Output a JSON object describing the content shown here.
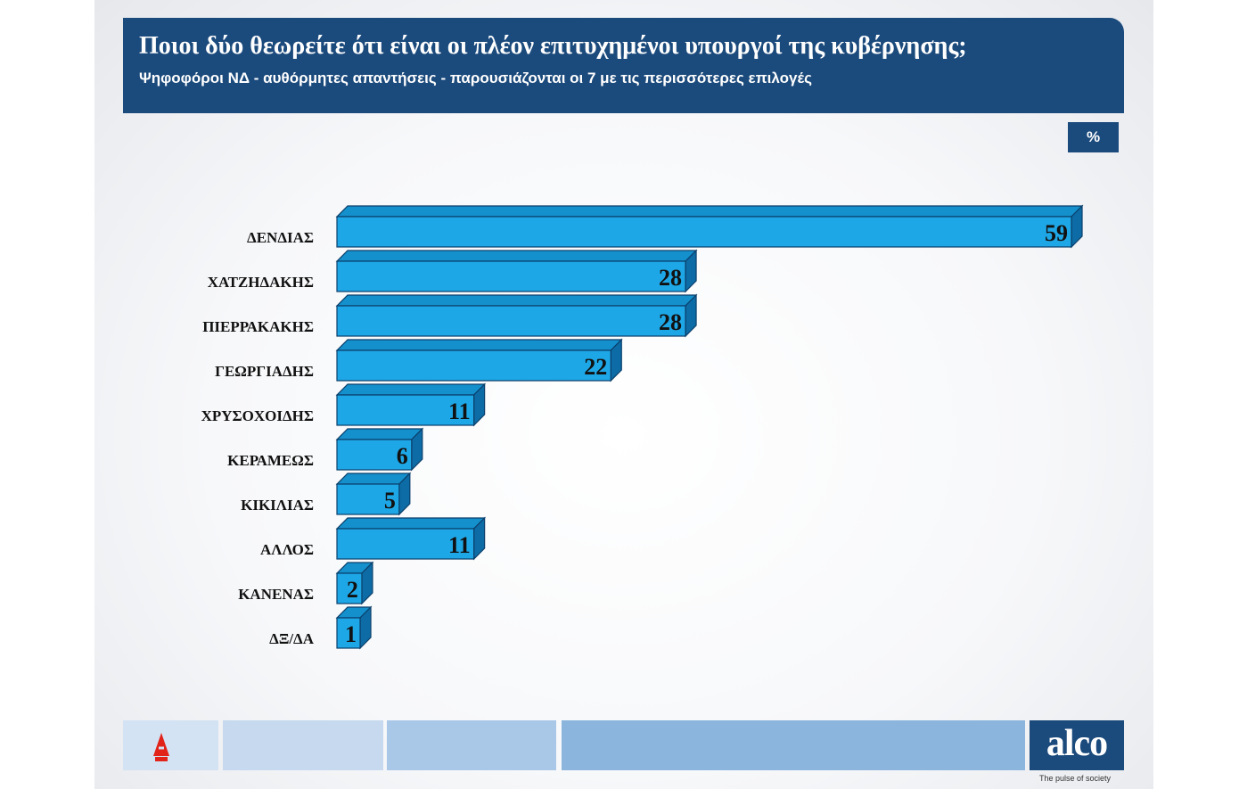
{
  "header": {
    "title": "Ποιοι δύο θεωρείτε ότι είναι οι πλέον επιτυχημένοι υπουργοί της κυβέρνησης;",
    "subtitle": "Ψηφοφόροι ΝΔ - αυθόρμητες απαντήσεις - παρουσιάζονται οι 7 με τις περισσότερες επιλογές"
  },
  "unit_label": "%",
  "chart_data": {
    "type": "bar",
    "orientation": "horizontal",
    "title": "Ποιοι δύο θεωρείτε ότι είναι οι πλέον επιτυχημένοι υπουργοί της κυβέρνησης;",
    "subtitle": "Ψηφοφόροι ΝΔ - αυθόρμητες απαντήσεις - παρουσιάζονται οι 7 με τις περισσότερες επιλογές",
    "unit": "%",
    "categories": [
      "ΔΕΝΔΙΑΣ",
      "ΧΑΤΖΗΔΑΚΗΣ",
      "ΠΙΕΡΡΑΚΑΚΗΣ",
      "ΓΕΩΡΓΙΑΔΗΣ",
      "ΧΡΥΣΟΧΟΙΔΗΣ",
      "ΚΕΡΑΜΕΩΣ",
      "ΚΙΚΙΛΙΑΣ",
      "ΑΛΛΟΣ",
      "ΚΑΝΕΝΑΣ",
      "ΔΞ/ΔΑ"
    ],
    "values": [
      59,
      28,
      28,
      22,
      11,
      6,
      5,
      11,
      2,
      1
    ],
    "data_labels": [
      "59",
      "28",
      "28",
      "22",
      "11",
      "6",
      "5",
      "11",
      "2",
      "1"
    ],
    "xlim": [
      0,
      59
    ],
    "grid": false,
    "legend": "none",
    "bar_color": "#1ea7e6",
    "bar_top_color": "#1490cc",
    "bar_side_color": "#0d6ca6",
    "bar_outline_color": "#0b3f6b"
  },
  "footer": {
    "brand": "alco",
    "tagline": "The pulse of society",
    "channel_logo_icon": "alpha-tv-logo",
    "band_colors": [
      "#c6d9ee",
      "#a9c8e8",
      "#8bb5dd"
    ],
    "brand_color": "#1b4a7c"
  }
}
